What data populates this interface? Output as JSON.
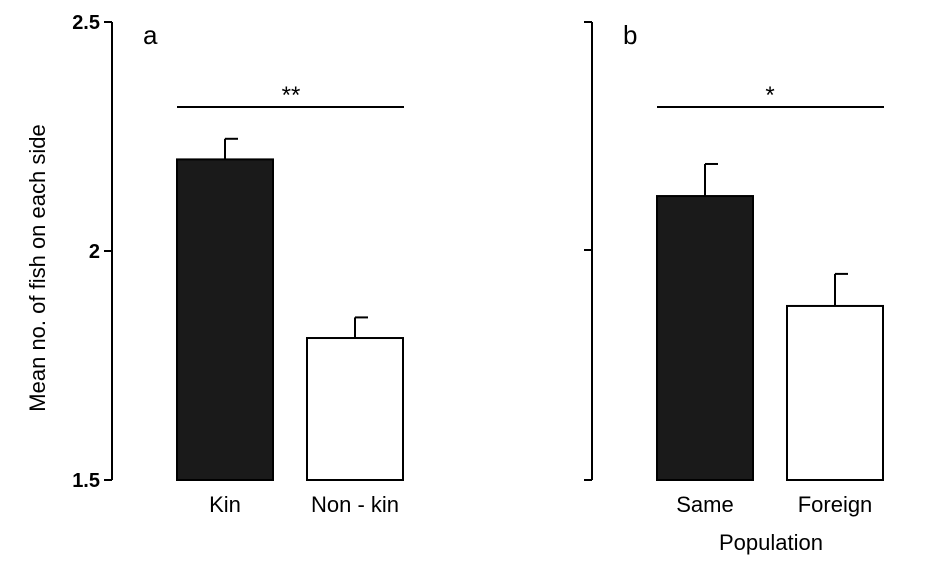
{
  "chart_data": [
    {
      "type": "bar",
      "panel": "a",
      "categories": [
        "Kin",
        "Non - kin"
      ],
      "values": [
        2.2,
        1.81
      ],
      "errors": [
        0.045,
        0.045
      ],
      "bar_colors": [
        "#1a1a1a",
        "#ffffff"
      ],
      "ylabel": "Mean no. of fish on each side",
      "xlabel": "",
      "ylim": [
        1.5,
        2.5
      ],
      "yticks": [
        "1.5",
        "2",
        "2.5"
      ],
      "significance": "**"
    },
    {
      "type": "bar",
      "panel": "b",
      "categories": [
        "Same",
        "Foreign"
      ],
      "values": [
        2.12,
        1.88
      ],
      "errors": [
        0.07,
        0.07
      ],
      "bar_colors": [
        "#1a1a1a",
        "#ffffff"
      ],
      "ylabel": "",
      "xlabel": "Population",
      "ylim": [
        1.5,
        2.5
      ],
      "yticks": [],
      "significance": "*"
    }
  ]
}
